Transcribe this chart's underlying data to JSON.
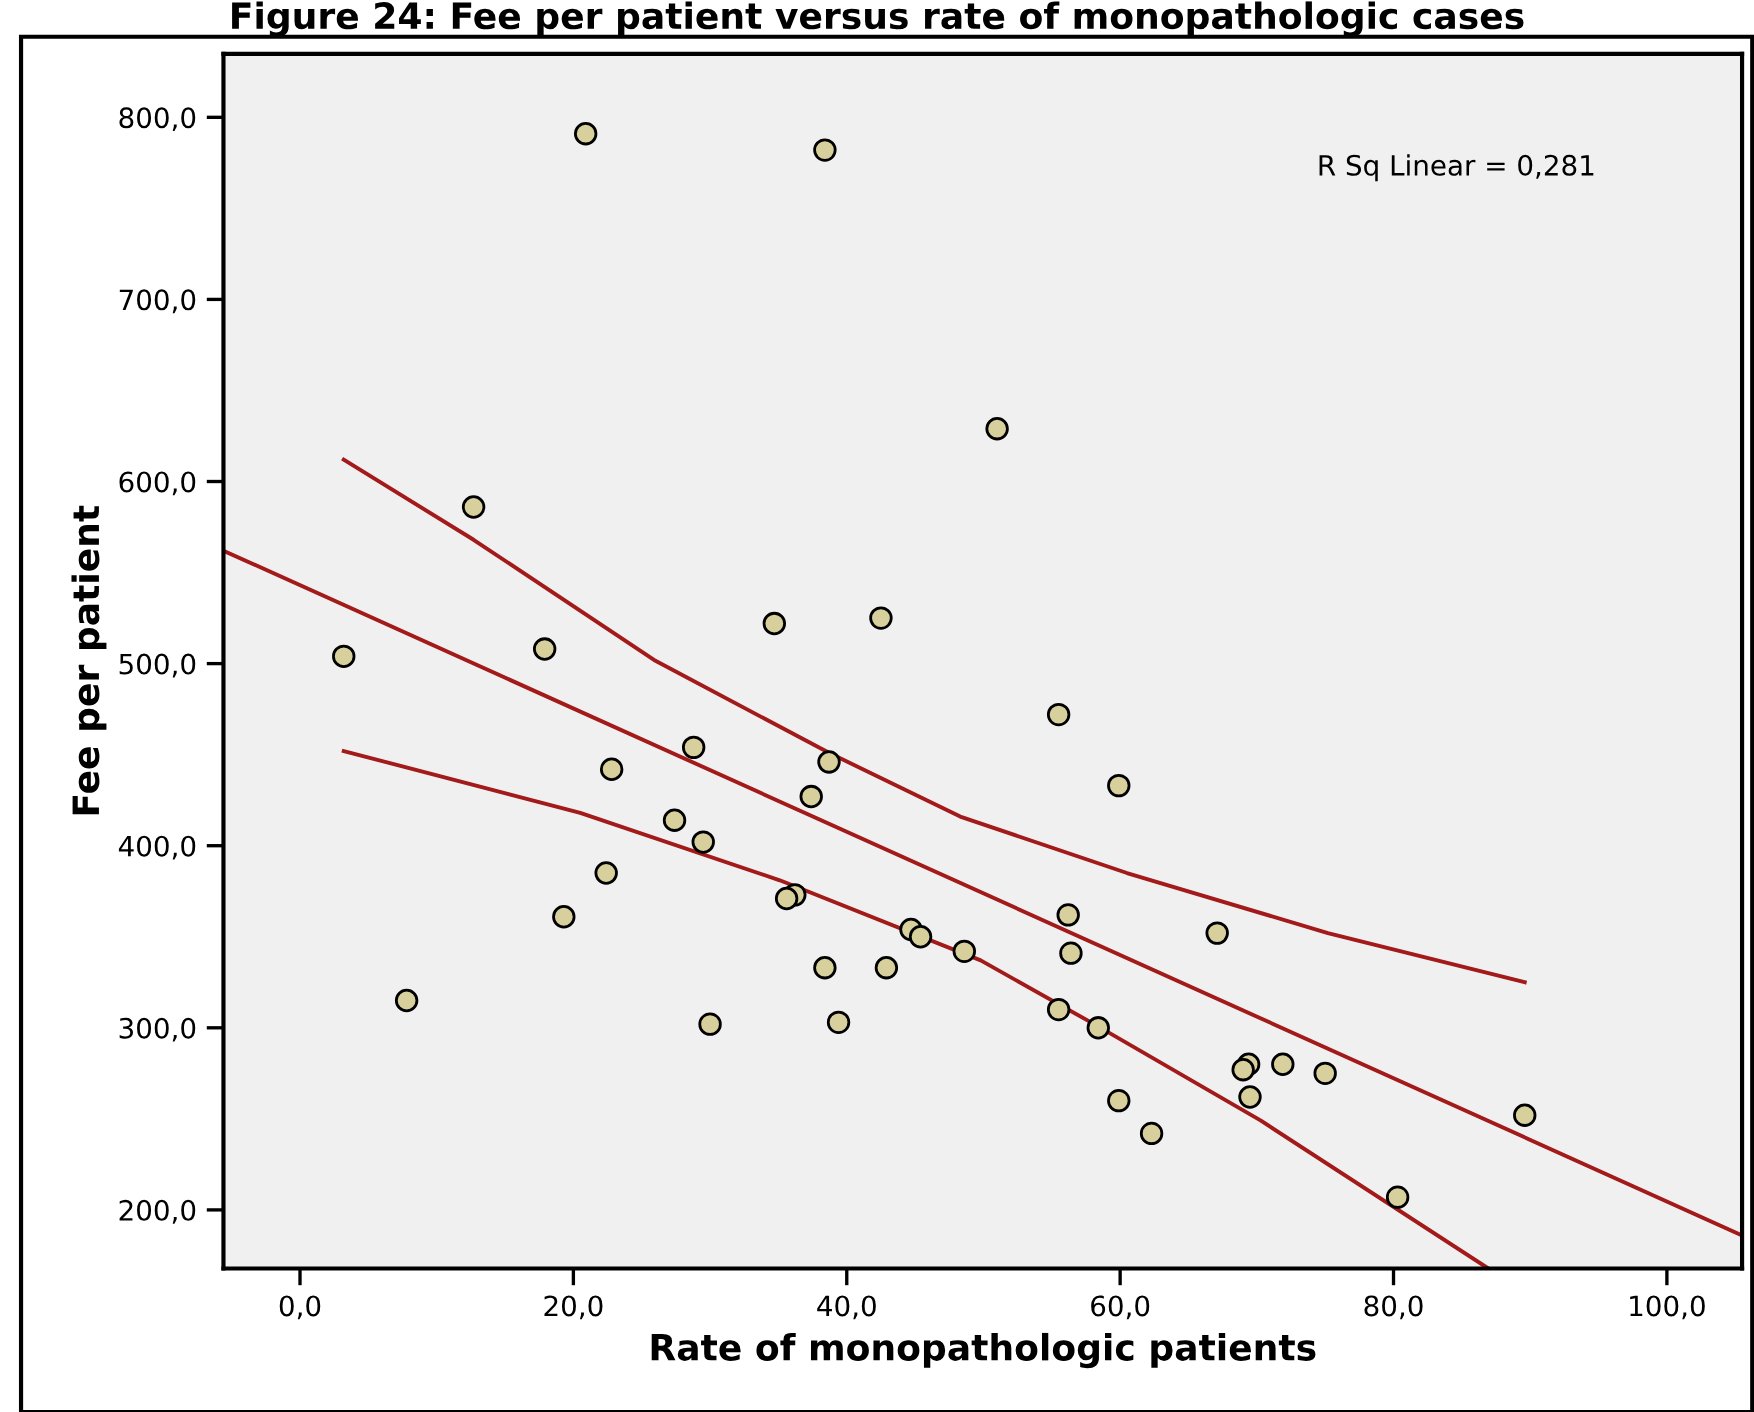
{
  "chart_data": {
    "type": "scatter",
    "title": "Figure 24: Fee per patient versus rate of monopathologic cases",
    "xlabel": "Rate of monopathologic patients",
    "ylabel": "Fee per patient",
    "annotations": [
      "R Sq Linear = 0,281"
    ],
    "xlim": [
      -5.6,
      105.5
    ],
    "ylim": [
      167.8,
      834.8
    ],
    "xticks": [
      {
        "value": 0,
        "label": "0,0"
      },
      {
        "value": 20,
        "label": "20,0"
      },
      {
        "value": 40,
        "label": "40,0"
      },
      {
        "value": 60,
        "label": "60,0"
      },
      {
        "value": 80,
        "label": "80,0"
      },
      {
        "value": 100,
        "label": "100,0"
      }
    ],
    "yticks": [
      {
        "value": 200,
        "label": "200,0"
      },
      {
        "value": 300,
        "label": "300,0"
      },
      {
        "value": 400,
        "label": "400,0"
      },
      {
        "value": 500,
        "label": "500,0"
      },
      {
        "value": 600,
        "label": "600,0"
      },
      {
        "value": 700,
        "label": "700,0"
      },
      {
        "value": 800,
        "label": "800,0"
      }
    ],
    "grid": false,
    "legend": false,
    "series": [
      {
        "marker": "circle",
        "color": "#d8d09c",
        "x": [
          20.9,
          38.4,
          12.7,
          3.2,
          17.9,
          34.7,
          42.5,
          28.8,
          22.8,
          38.7,
          37.4,
          27.4,
          29.5,
          22.4,
          36.2,
          35.6,
          19.3,
          44.7,
          45.4,
          48.6,
          38.4,
          42.9,
          7.8,
          30.0,
          39.4,
          55.5,
          59.9,
          56.2,
          56.4,
          67.1,
          55.5,
          58.4,
          69.4,
          69.0,
          71.9,
          75.0,
          69.5,
          59.9,
          62.3,
          89.6,
          80.3,
          51.0
        ],
        "values": [
          791,
          782,
          586,
          504,
          508,
          522,
          525,
          454,
          442,
          446,
          427,
          414,
          402,
          385,
          373,
          371,
          361,
          354,
          350,
          342,
          333,
          333,
          315,
          302,
          303,
          472,
          433,
          362,
          341,
          352,
          310,
          300,
          280,
          277,
          280,
          275,
          262,
          260,
          242,
          252,
          207,
          629
        ]
      },
      {
        "type": "line",
        "marker": "none",
        "color": "#a31a1a",
        "x": [
          -5.6,
          105.5
        ],
        "values": [
          562,
          186
        ]
      },
      {
        "type": "line",
        "marker": "none",
        "color": "#a31a1a",
        "x": [
          3.2,
          12.7,
          25.9,
          38.7,
          48.3,
          60.5,
          75.2,
          89.6
        ],
        "values": [
          612,
          568,
          502,
          451,
          416,
          385,
          352,
          325
        ]
      },
      {
        "type": "line",
        "marker": "none",
        "color": "#a31a1a",
        "x": [
          3.2,
          20.5,
          35.1,
          49.8,
          58.1,
          70.3,
          86.9
        ],
        "values": [
          452,
          418,
          381,
          337,
          302,
          249,
          168
        ]
      }
    ]
  }
}
